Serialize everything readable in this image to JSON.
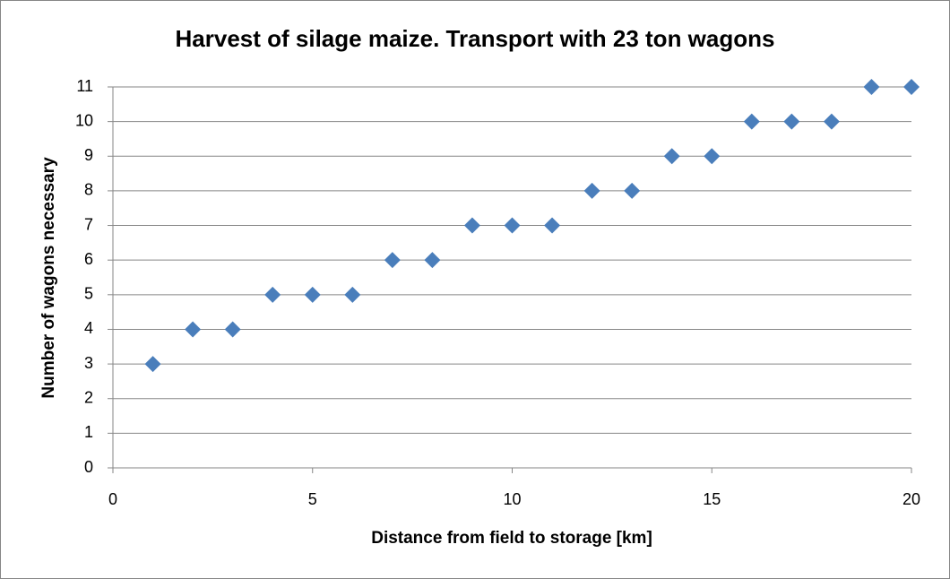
{
  "chart_data": {
    "type": "scatter",
    "title": "Harvest of silage maize. Transport with 23 ton wagons",
    "x_label": "Distance from field to storage [km]",
    "y_label": "Number of wagons necessary",
    "series": [
      {
        "color": "#4a7ebb",
        "x": [
          1,
          2,
          3,
          4,
          5,
          6,
          7,
          8,
          9,
          10,
          11,
          12,
          13,
          14,
          15,
          16,
          17,
          18,
          19,
          20
        ],
        "values": [
          3,
          4,
          4,
          5,
          5,
          5,
          6,
          6,
          7,
          7,
          7,
          8,
          8,
          9,
          9,
          10,
          10,
          10,
          11,
          11
        ]
      }
    ],
    "xlim": [
      0,
      20
    ],
    "xticks": [
      0,
      5,
      10,
      15,
      20
    ],
    "ylim": [
      0,
      11
    ],
    "yticks": [
      0,
      1,
      2,
      3,
      4,
      5,
      6,
      7,
      8,
      9,
      10,
      11
    ],
    "grid": true
  }
}
